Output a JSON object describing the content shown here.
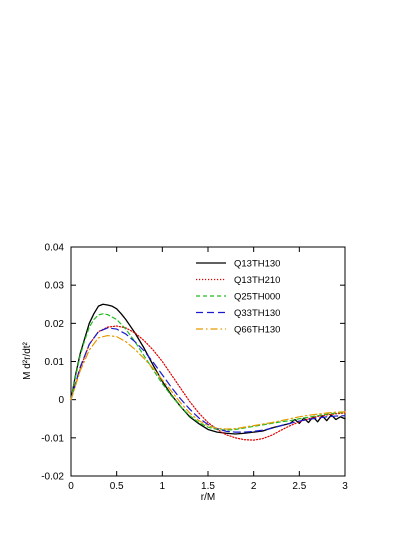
{
  "chart_data": {
    "type": "line",
    "title": "",
    "xlabel": "r/M",
    "ylabel": "M d²r/dt²",
    "xlim": [
      0,
      3
    ],
    "ylim": [
      -0.02,
      0.04
    ],
    "xticks": [
      0,
      0.5,
      1,
      1.5,
      2,
      2.5,
      3
    ],
    "xtick_labels": [
      "0",
      "0.5",
      "1",
      "1.5",
      "2",
      "2.5",
      "3"
    ],
    "yticks": [
      -0.02,
      -0.01,
      0,
      0.01,
      0.02,
      0.03,
      0.04
    ],
    "ytick_labels": [
      "-0.02",
      "-0.01",
      "0",
      "0.01",
      "0.02",
      "0.03",
      "0.04"
    ],
    "grid": false,
    "legend_position": "top-right",
    "series": [
      {
        "name": "Q13TH130",
        "color": "#000000",
        "dash": "solid",
        "points": [
          [
            0,
            0
          ],
          [
            0.05,
            0.0065
          ],
          [
            0.1,
            0.012
          ],
          [
            0.15,
            0.016
          ],
          [
            0.2,
            0.02
          ],
          [
            0.25,
            0.0225
          ],
          [
            0.3,
            0.0245
          ],
          [
            0.35,
            0.025
          ],
          [
            0.4,
            0.0248
          ],
          [
            0.45,
            0.0245
          ],
          [
            0.5,
            0.0238
          ],
          [
            0.55,
            0.0225
          ],
          [
            0.6,
            0.021
          ],
          [
            0.7,
            0.0175
          ],
          [
            0.8,
            0.0135
          ],
          [
            0.9,
            0.009
          ],
          [
            1.0,
            0.0048
          ],
          [
            1.1,
            0.0012
          ],
          [
            1.2,
            -0.0018
          ],
          [
            1.3,
            -0.0045
          ],
          [
            1.4,
            -0.0063
          ],
          [
            1.5,
            -0.0078
          ],
          [
            1.6,
            -0.0085
          ],
          [
            1.7,
            -0.0088
          ],
          [
            1.8,
            -0.009
          ],
          [
            1.9,
            -0.0088
          ],
          [
            2.0,
            -0.0085
          ],
          [
            2.1,
            -0.0082
          ],
          [
            2.2,
            -0.0074
          ],
          [
            2.3,
            -0.0068
          ],
          [
            2.4,
            -0.0062
          ],
          [
            2.45,
            -0.0052
          ],
          [
            2.5,
            -0.0062
          ],
          [
            2.55,
            -0.0048
          ],
          [
            2.6,
            -0.006
          ],
          [
            2.65,
            -0.0045
          ],
          [
            2.7,
            -0.0058
          ],
          [
            2.75,
            -0.0042
          ],
          [
            2.8,
            -0.0055
          ],
          [
            2.85,
            -0.004
          ],
          [
            2.9,
            -0.0052
          ],
          [
            2.95,
            -0.0045
          ],
          [
            3.0,
            -0.005
          ]
        ]
      },
      {
        "name": "Q13TH210",
        "color": "#e00000",
        "dash": "dotted",
        "points": [
          [
            0,
            0
          ],
          [
            0.1,
            0.008
          ],
          [
            0.2,
            0.0145
          ],
          [
            0.3,
            0.0178
          ],
          [
            0.4,
            0.019
          ],
          [
            0.5,
            0.0193
          ],
          [
            0.6,
            0.0188
          ],
          [
            0.7,
            0.0175
          ],
          [
            0.8,
            0.0155
          ],
          [
            0.9,
            0.013
          ],
          [
            1.0,
            0.01
          ],
          [
            1.1,
            0.0065
          ],
          [
            1.2,
            0.003
          ],
          [
            1.3,
            -0.0005
          ],
          [
            1.4,
            -0.0035
          ],
          [
            1.5,
            -0.006
          ],
          [
            1.6,
            -0.0078
          ],
          [
            1.7,
            -0.0092
          ],
          [
            1.8,
            -0.01
          ],
          [
            1.9,
            -0.0105
          ],
          [
            2.0,
            -0.0106
          ],
          [
            2.1,
            -0.0102
          ],
          [
            2.2,
            -0.0093
          ],
          [
            2.3,
            -0.008
          ],
          [
            2.4,
            -0.0068
          ],
          [
            2.5,
            -0.0058
          ],
          [
            2.6,
            -0.005
          ],
          [
            2.7,
            -0.0044
          ],
          [
            2.8,
            -0.004
          ],
          [
            2.9,
            -0.0037
          ],
          [
            3.0,
            -0.0035
          ]
        ]
      },
      {
        "name": "Q25TH000",
        "color": "#22bb22",
        "dash": "dashed",
        "points": [
          [
            0,
            0
          ],
          [
            0.05,
            0.006
          ],
          [
            0.1,
            0.0115
          ],
          [
            0.15,
            0.0155
          ],
          [
            0.2,
            0.019
          ],
          [
            0.25,
            0.021
          ],
          [
            0.3,
            0.0222
          ],
          [
            0.35,
            0.0225
          ],
          [
            0.4,
            0.0223
          ],
          [
            0.5,
            0.021
          ],
          [
            0.6,
            0.0185
          ],
          [
            0.7,
            0.0152
          ],
          [
            0.8,
            0.0115
          ],
          [
            0.9,
            0.0078
          ],
          [
            1.0,
            0.0042
          ],
          [
            1.1,
            0.001
          ],
          [
            1.2,
            -0.0018
          ],
          [
            1.3,
            -0.0042
          ],
          [
            1.4,
            -0.006
          ],
          [
            1.5,
            -0.0072
          ],
          [
            1.6,
            -0.0078
          ],
          [
            1.7,
            -0.008
          ],
          [
            1.8,
            -0.0078
          ],
          [
            1.9,
            -0.0074
          ],
          [
            2.0,
            -0.007
          ],
          [
            2.1,
            -0.0066
          ],
          [
            2.2,
            -0.0062
          ],
          [
            2.3,
            -0.0058
          ],
          [
            2.4,
            -0.0055
          ],
          [
            2.5,
            -0.005
          ],
          [
            2.6,
            -0.0046
          ],
          [
            2.7,
            -0.0042
          ],
          [
            2.8,
            -0.0038
          ],
          [
            2.9,
            -0.0035
          ],
          [
            3.0,
            -0.0033
          ]
        ]
      },
      {
        "name": "Q33TH130",
        "color": "#1a1acc",
        "dash": "longdash",
        "points": [
          [
            0,
            0
          ],
          [
            0.1,
            0.0085
          ],
          [
            0.2,
            0.0145
          ],
          [
            0.3,
            0.0178
          ],
          [
            0.4,
            0.0188
          ],
          [
            0.5,
            0.0185
          ],
          [
            0.6,
            0.0172
          ],
          [
            0.7,
            0.0152
          ],
          [
            0.8,
            0.0128
          ],
          [
            0.9,
            0.0098
          ],
          [
            1.0,
            0.0065
          ],
          [
            1.1,
            0.0032
          ],
          [
            1.2,
            0.0002
          ],
          [
            1.3,
            -0.0025
          ],
          [
            1.4,
            -0.0048
          ],
          [
            1.5,
            -0.0065
          ],
          [
            1.6,
            -0.0076
          ],
          [
            1.7,
            -0.0083
          ],
          [
            1.8,
            -0.0085
          ],
          [
            1.9,
            -0.0085
          ],
          [
            2.0,
            -0.0083
          ],
          [
            2.1,
            -0.008
          ],
          [
            2.2,
            -0.0075
          ],
          [
            2.3,
            -0.0068
          ],
          [
            2.4,
            -0.0062
          ],
          [
            2.5,
            -0.0056
          ],
          [
            2.6,
            -0.0052
          ],
          [
            2.7,
            -0.0048
          ],
          [
            2.8,
            -0.0045
          ],
          [
            2.9,
            -0.0043
          ],
          [
            3.0,
            -0.0042
          ]
        ]
      },
      {
        "name": "Q66TH130",
        "color": "#e69a00",
        "dash": "dashdot",
        "points": [
          [
            0,
            0
          ],
          [
            0.1,
            0.0075
          ],
          [
            0.2,
            0.013
          ],
          [
            0.3,
            0.0162
          ],
          [
            0.4,
            0.0168
          ],
          [
            0.5,
            0.0165
          ],
          [
            0.6,
            0.0152
          ],
          [
            0.7,
            0.0132
          ],
          [
            0.8,
            0.0108
          ],
          [
            0.9,
            0.0082
          ],
          [
            1.0,
            0.0052
          ],
          [
            1.1,
            0.0022
          ],
          [
            1.2,
            -0.0008
          ],
          [
            1.3,
            -0.0035
          ],
          [
            1.4,
            -0.0055
          ],
          [
            1.5,
            -0.0068
          ],
          [
            1.6,
            -0.0075
          ],
          [
            1.7,
            -0.0077
          ],
          [
            1.8,
            -0.0076
          ],
          [
            1.9,
            -0.0072
          ],
          [
            2.0,
            -0.0068
          ],
          [
            2.1,
            -0.0064
          ],
          [
            2.2,
            -0.006
          ],
          [
            2.3,
            -0.0055
          ],
          [
            2.4,
            -0.005
          ],
          [
            2.5,
            -0.0045
          ],
          [
            2.6,
            -0.0041
          ],
          [
            2.7,
            -0.0038
          ],
          [
            2.8,
            -0.0035
          ],
          [
            2.9,
            -0.0033
          ],
          [
            3.0,
            -0.0032
          ]
        ]
      }
    ]
  }
}
